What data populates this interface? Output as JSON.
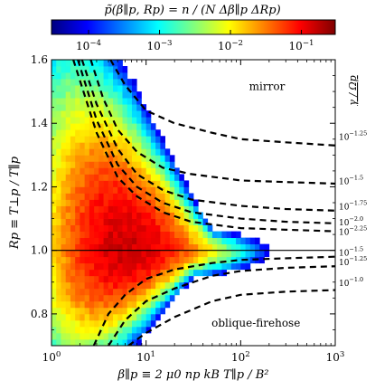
{
  "chart_data": {
    "type": "heatmap",
    "title": "p̃(β∥p, Rp) = n / (N Δβ∥p ΔRp)",
    "xlabel": "β∥p ≡ 2 μ0 np kB T∥p / B²",
    "ylabel": "Rp ≡ T⊥p / T∥p",
    "xscale": "log",
    "xlim": [
      1,
      1000
    ],
    "ylim": [
      0.7,
      1.6
    ],
    "x_ticks": [
      {
        "value": 1,
        "base": "10",
        "exp": "0"
      },
      {
        "value": 10,
        "base": "10",
        "exp": "1"
      },
      {
        "value": 100,
        "base": "10",
        "exp": "2"
      },
      {
        "value": 1000,
        "base": "10",
        "exp": "3"
      }
    ],
    "y_ticks": [
      {
        "value": 0.8,
        "label": "0.8"
      },
      {
        "value": 1.0,
        "label": "1.0"
      },
      {
        "value": 1.2,
        "label": "1.2"
      },
      {
        "value": 1.4,
        "label": "1.4"
      },
      {
        "value": 1.6,
        "label": "1.6"
      }
    ],
    "colorbar": {
      "scale": "log",
      "range": [
        3e-05,
        0.3
      ],
      "ticks": [
        {
          "value": 0.0001,
          "base": "10",
          "exp": "−4"
        },
        {
          "value": 0.001,
          "base": "10",
          "exp": "−3"
        },
        {
          "value": 0.01,
          "base": "10",
          "exp": "−2"
        },
        {
          "value": 0.1,
          "base": "10",
          "exp": "−1"
        }
      ]
    },
    "heatmap_model": {
      "grid_beta_log_step": 0.05,
      "grid_R_step": 0.02,
      "peak_density": 0.15,
      "peak_location": {
        "beta": 6,
        "R": 1.0
      }
    },
    "reference_line": {
      "y": 1.0,
      "style": "solid",
      "color": "#000000"
    },
    "contour_legend_title": "γ / Ωp",
    "contours": [
      {
        "region": "mirror",
        "label_base": "10",
        "label_exp": "−1.25",
        "label_y": 1.36,
        "points": [
          [
            4.2,
            1.6
          ],
          [
            6,
            1.52
          ],
          [
            10,
            1.44
          ],
          [
            20,
            1.4
          ],
          [
            50,
            1.37
          ],
          [
            100,
            1.35
          ],
          [
            300,
            1.34
          ],
          [
            1000,
            1.33
          ]
        ]
      },
      {
        "region": "mirror",
        "label_base": "10",
        "label_exp": "−1.5",
        "label_y": 1.22,
        "points": [
          [
            2.6,
            1.6
          ],
          [
            3.5,
            1.48
          ],
          [
            5,
            1.38
          ],
          [
            8,
            1.31
          ],
          [
            15,
            1.26
          ],
          [
            30,
            1.24
          ],
          [
            100,
            1.22
          ],
          [
            300,
            1.215
          ],
          [
            1000,
            1.21
          ]
        ]
      },
      {
        "region": "mirror",
        "label_base": "10",
        "label_exp": "−1.75",
        "label_y": 1.14,
        "points": [
          [
            2.1,
            1.6
          ],
          [
            3,
            1.46
          ],
          [
            5,
            1.32
          ],
          [
            8,
            1.24
          ],
          [
            15,
            1.19
          ],
          [
            30,
            1.16
          ],
          [
            100,
            1.14
          ],
          [
            300,
            1.13
          ],
          [
            1000,
            1.125
          ]
        ]
      },
      {
        "region": "mirror",
        "label_base": "10",
        "label_exp": "−2.0",
        "label_y": 1.09,
        "points": [
          [
            1.9,
            1.6
          ],
          [
            3,
            1.41
          ],
          [
            5,
            1.27
          ],
          [
            8,
            1.2
          ],
          [
            15,
            1.15
          ],
          [
            30,
            1.12
          ],
          [
            100,
            1.1
          ],
          [
            300,
            1.09
          ],
          [
            1000,
            1.085
          ]
        ]
      },
      {
        "region": "mirror",
        "label_base": "10",
        "label_exp": "−2.25",
        "label_y": 1.06,
        "points": [
          [
            1.7,
            1.6
          ],
          [
            3,
            1.37
          ],
          [
            5,
            1.23
          ],
          [
            8,
            1.17
          ],
          [
            15,
            1.12
          ],
          [
            30,
            1.09
          ],
          [
            100,
            1.07
          ],
          [
            300,
            1.065
          ],
          [
            1000,
            1.06
          ]
        ]
      },
      {
        "region": "oblique-firehose",
        "label_base": "10",
        "label_exp": "−1.5",
        "label_y": 0.995,
        "points": [
          [
            2.8,
            0.7
          ],
          [
            4,
            0.8
          ],
          [
            6,
            0.86
          ],
          [
            10,
            0.91
          ],
          [
            20,
            0.94
          ],
          [
            50,
            0.96
          ],
          [
            100,
            0.97
          ],
          [
            300,
            0.975
          ],
          [
            1000,
            0.98
          ]
        ]
      },
      {
        "region": "oblique-firehose",
        "label_base": "10",
        "label_exp": "−1.25",
        "label_y": 0.965,
        "points": [
          [
            4,
            0.7
          ],
          [
            6,
            0.78
          ],
          [
            10,
            0.84
          ],
          [
            20,
            0.88
          ],
          [
            50,
            0.92
          ],
          [
            100,
            0.935
          ],
          [
            300,
            0.945
          ],
          [
            1000,
            0.95
          ]
        ]
      },
      {
        "region": "oblique-firehose",
        "label_base": "10",
        "label_exp": "−1.0",
        "label_y": 0.9,
        "points": [
          [
            6.5,
            0.7
          ],
          [
            10,
            0.74
          ],
          [
            20,
            0.79
          ],
          [
            50,
            0.84
          ],
          [
            100,
            0.86
          ],
          [
            300,
            0.87
          ],
          [
            1000,
            0.875
          ]
        ]
      }
    ],
    "annotations": [
      {
        "text": "mirror",
        "beta": 190,
        "R": 1.505
      },
      {
        "text": "oblique-firehose",
        "beta": 145,
        "R": 0.76
      }
    ]
  }
}
